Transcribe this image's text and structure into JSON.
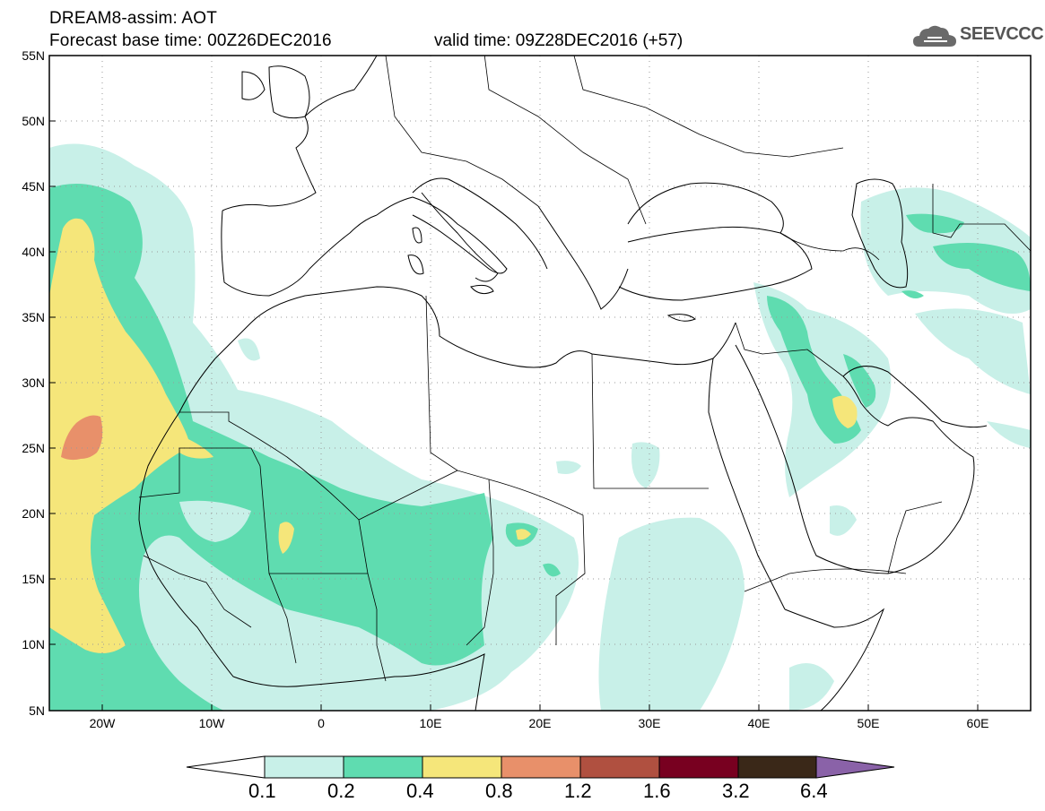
{
  "header": {
    "title": "DREAM8-assim: AOT",
    "base_time": "Forecast base time: 00Z26DEC2016",
    "valid_time": "valid time: 09Z28DEC2016 (+57)",
    "logo": "SEEVCCC"
  },
  "axes": {
    "lat_labels": [
      "55N",
      "50N",
      "45N",
      "40N",
      "35N",
      "30N",
      "25N",
      "20N",
      "15N",
      "10N",
      "5N"
    ],
    "lon_labels": [
      "20W",
      "10W",
      "0",
      "10E",
      "20E",
      "30E",
      "40E",
      "50E",
      "60E"
    ]
  },
  "colorbar": {
    "labels": [
      "0.1",
      "0.2",
      "0.4",
      "0.8",
      "1.2",
      "1.6",
      "3.2",
      "6.4"
    ],
    "colors": [
      "#ffffff",
      "#c8f0e8",
      "#5fdcb0",
      "#f5e67a",
      "#e8906a",
      "#b05040",
      "#780020",
      "#3a2818",
      "#8a62a8"
    ]
  },
  "palette": {
    "c1": "#c8f0e8",
    "c2": "#5fdcb0",
    "c3": "#f5e67a",
    "c4": "#e8906a"
  }
}
